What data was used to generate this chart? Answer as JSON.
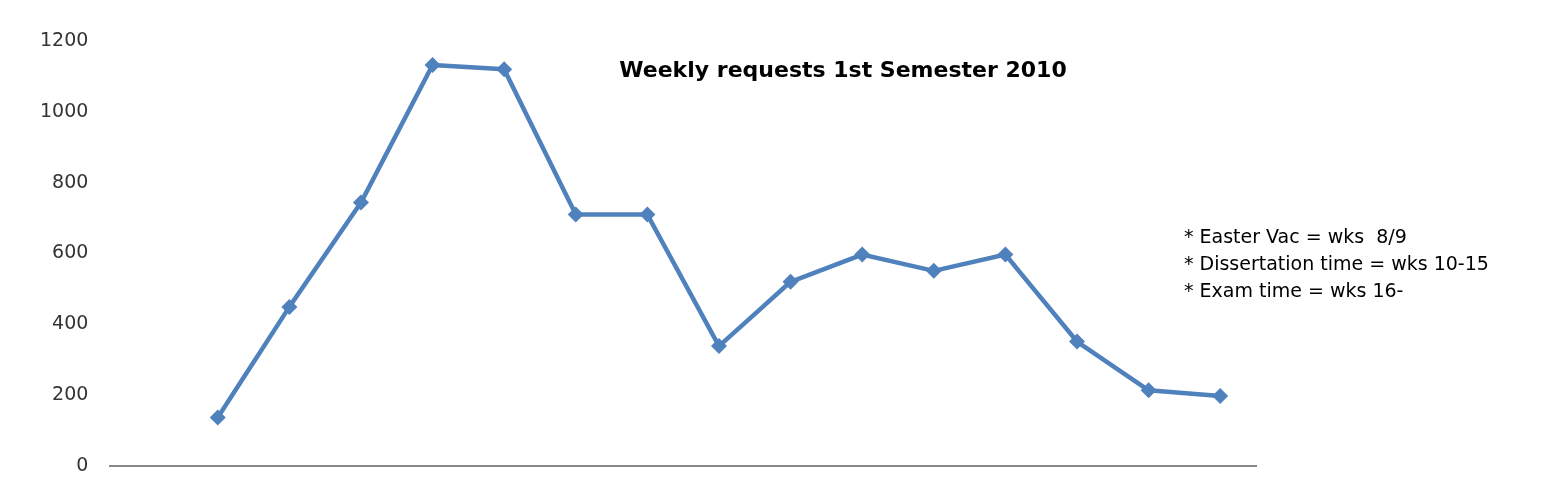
{
  "chart_data": {
    "type": "line",
    "title": "Weekly requests 1st Semester 2010",
    "categories": [
      null,
      null,
      null,
      null,
      null,
      null,
      null,
      null,
      null,
      null,
      null,
      null,
      null,
      null,
      null,
      null
    ],
    "series": [
      {
        "color": "#4f81bd",
        "values": [
          null,
          136,
          449,
          744,
          1133,
          1121,
          710,
          710,
          338,
          520,
          597,
          551,
          597,
          351,
          213,
          197
        ]
      }
    ],
    "ylim": [
      0,
      1200
    ],
    "yticks": [
      0,
      200,
      400,
      600,
      800,
      1000,
      1200
    ],
    "grid": false,
    "legend": false,
    "marker": "diamond",
    "line_style": "solid",
    "annotations": [
      "* Easter Vac = wks  8/9",
      "* Dissertation time = wks 10-15",
      "* Exam time = wks 16-"
    ]
  }
}
